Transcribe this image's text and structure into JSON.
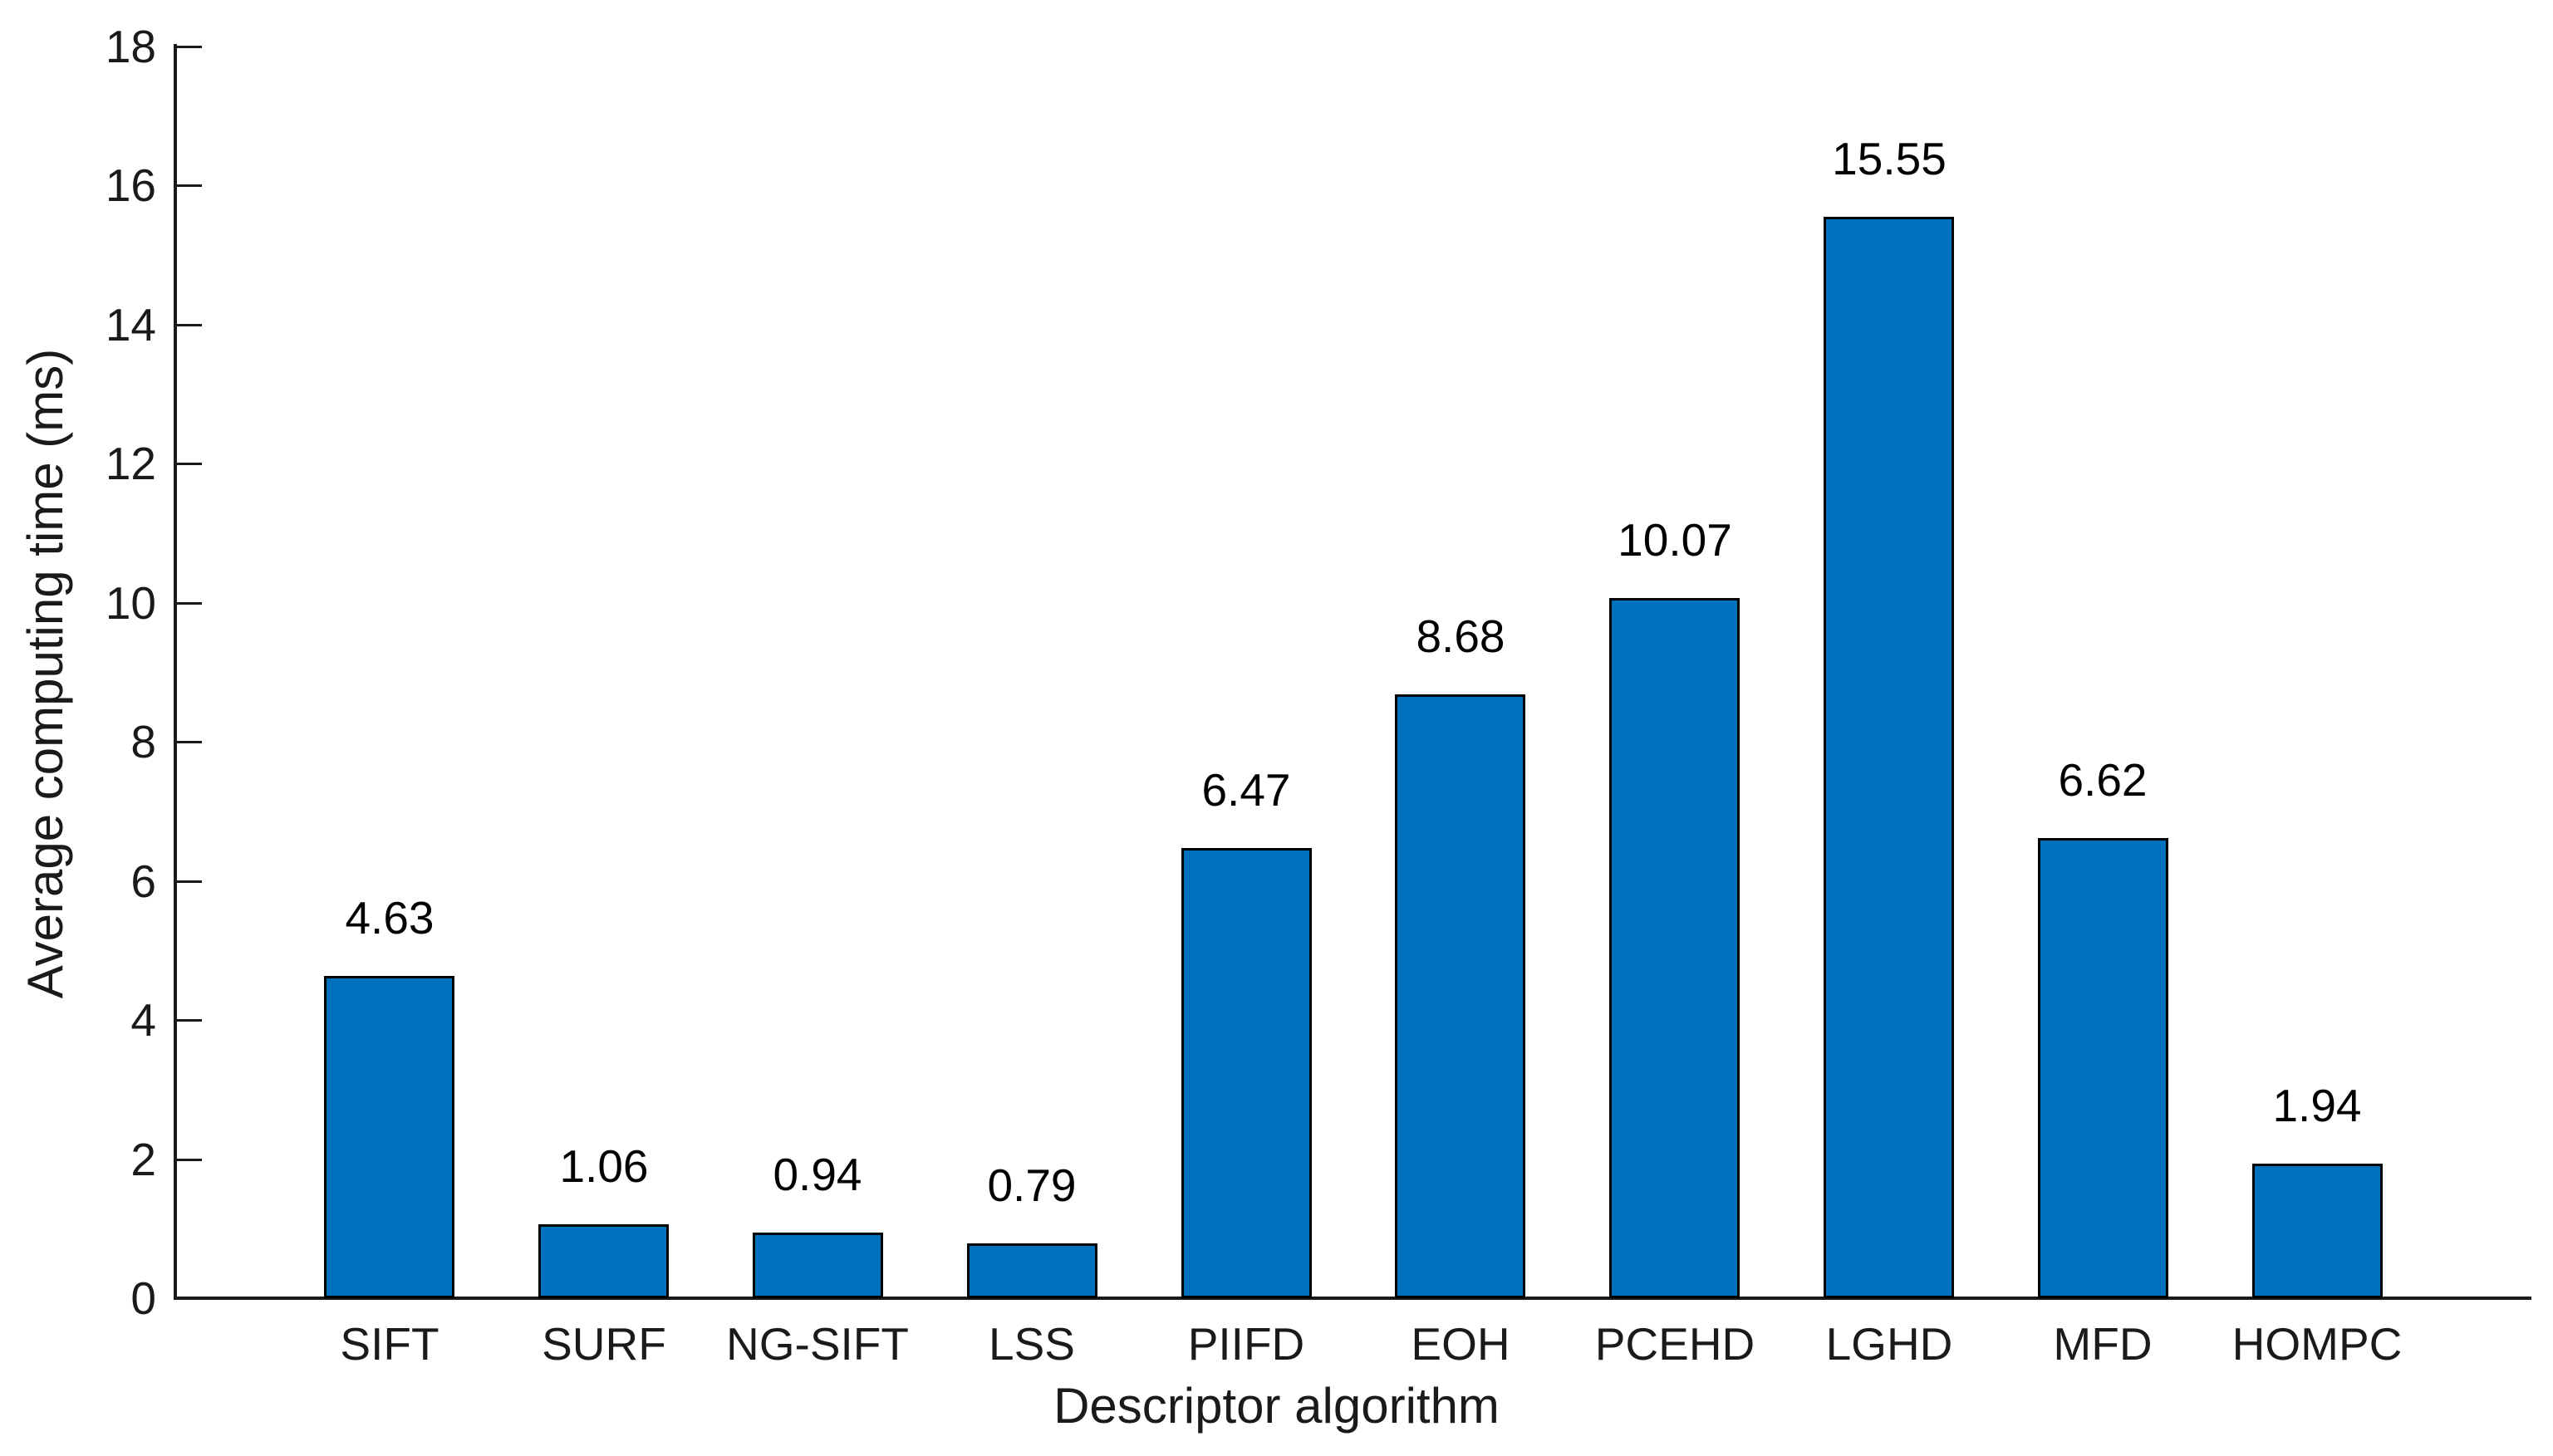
{
  "chart_data": {
    "type": "bar",
    "categories": [
      "SIFT",
      "SURF",
      "NG-SIFT",
      "LSS",
      "PIIFD",
      "EOH",
      "PCEHD",
      "LGHD",
      "MFD",
      "HOMPC"
    ],
    "values": [
      4.63,
      1.06,
      0.94,
      0.79,
      6.47,
      8.68,
      10.07,
      15.55,
      6.62,
      1.94
    ],
    "value_labels": [
      "4.63",
      "1.06",
      "0.94",
      "0.79",
      "6.47",
      "8.68",
      "10.07",
      "15.55",
      "6.62",
      "1.94"
    ],
    "title": "",
    "xlabel": "Descriptor algorithm",
    "ylabel": "Average computing time (ms)",
    "ylim": [
      0,
      18
    ],
    "yticks": [
      0,
      2,
      4,
      6,
      8,
      10,
      12,
      14,
      16,
      18
    ],
    "grid": false,
    "legend": "none",
    "bar_color": "#0072BD",
    "bar_edge_color": "#000000",
    "axis_color": "#1a1a1a",
    "background": "#FFFFFF"
  }
}
